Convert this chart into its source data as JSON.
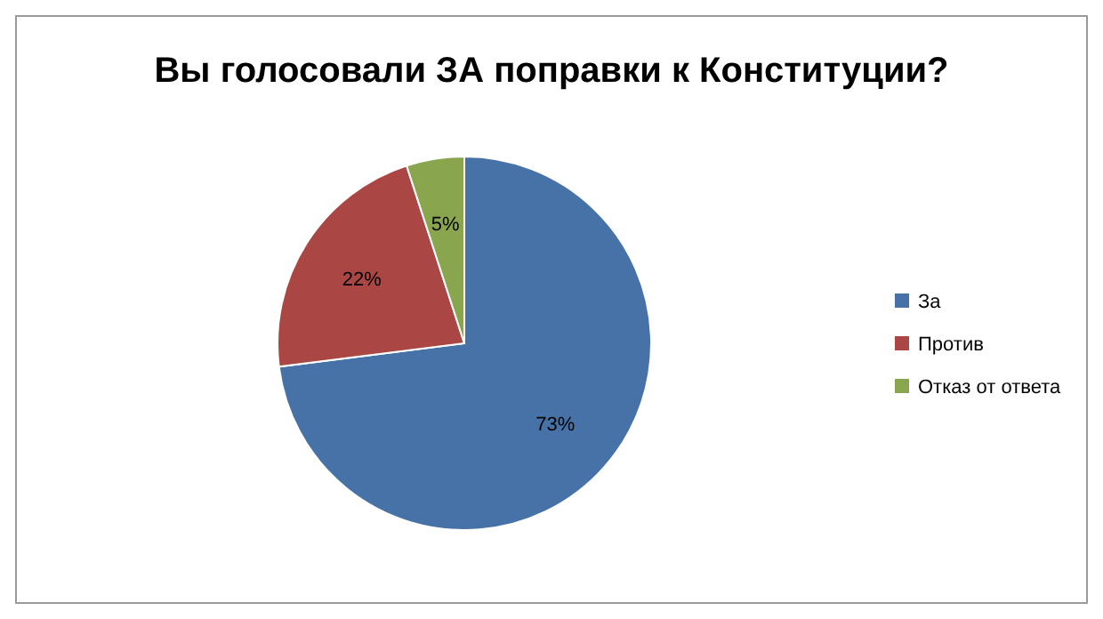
{
  "chart_data": {
    "type": "pie",
    "title": "Вы голосовали ЗА поправки к Конституции?",
    "categories": [
      "За",
      "Против",
      "Отказ от ответа"
    ],
    "values": [
      73,
      22,
      5
    ],
    "colors": [
      "#4672a8",
      "#aa4643",
      "#89a54e"
    ],
    "value_labels": [
      "73%",
      "22%",
      "5%"
    ],
    "legend": "right"
  }
}
